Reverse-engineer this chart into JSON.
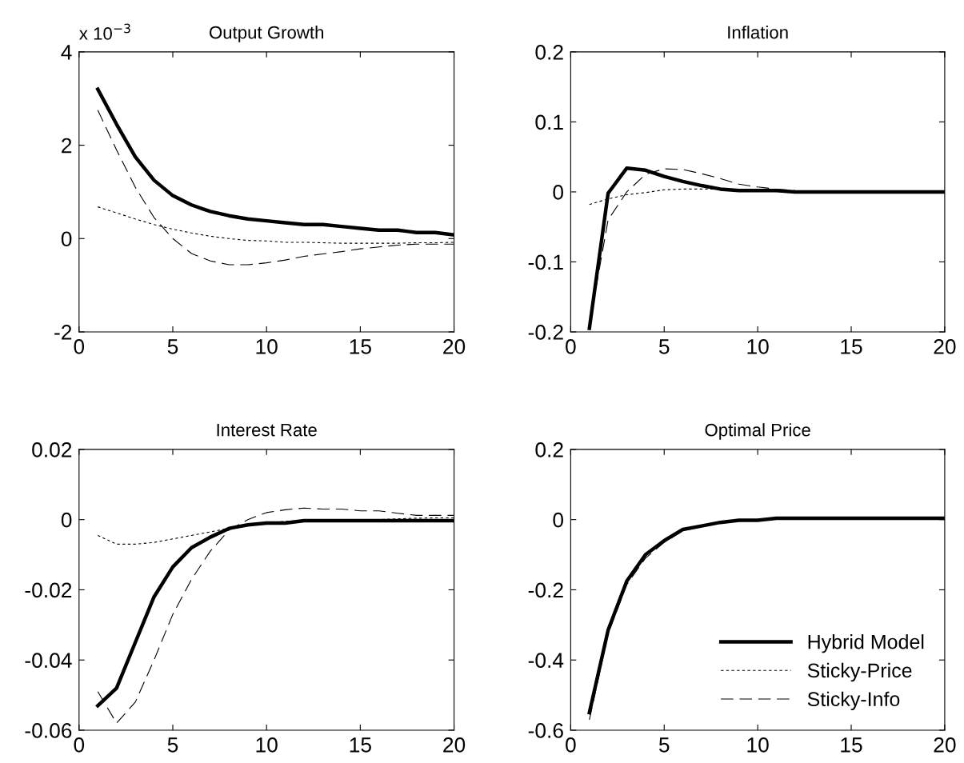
{
  "chart_data": [
    {
      "type": "line",
      "title": "Output Growth",
      "annotations": [
        "x 10$^{−3}$"
      ],
      "x": [
        1,
        2,
        3,
        4,
        5,
        6,
        7,
        8,
        9,
        10,
        11,
        12,
        13,
        14,
        15,
        16,
        17,
        18,
        19,
        20
      ],
      "xlim": [
        0,
        20
      ],
      "xticks": [
        0,
        5,
        10,
        15,
        20
      ],
      "ylim": [
        -2,
        4
      ],
      "yticks": [
        -2,
        0,
        2,
        4
      ],
      "grid": false,
      "legend": false,
      "series": [
        {
          "color": "#000000",
          "line_style": "solid",
          "values": [
            3.2,
            2.45,
            1.75,
            1.25,
            0.92,
            0.72,
            0.58,
            0.49,
            0.42,
            0.38,
            0.34,
            0.3,
            0.3,
            0.26,
            0.22,
            0.18,
            0.18,
            0.13,
            0.13,
            0.08
          ]
        },
        {
          "color": "#000000",
          "line_style": "dotted",
          "values": [
            0.68,
            0.55,
            0.42,
            0.3,
            0.2,
            0.12,
            0.05,
            0.0,
            -0.04,
            -0.05,
            -0.08,
            -0.08,
            -0.09,
            -0.1,
            -0.1,
            -0.1,
            -0.1,
            -0.09,
            -0.09,
            -0.08
          ]
        },
        {
          "color": "#000000",
          "line_style": "dashed",
          "values": [
            2.75,
            1.9,
            1.1,
            0.45,
            0.0,
            -0.32,
            -0.48,
            -0.56,
            -0.56,
            -0.52,
            -0.46,
            -0.38,
            -0.33,
            -0.28,
            -0.22,
            -0.18,
            -0.14,
            -0.12,
            -0.12,
            -0.12
          ]
        }
      ]
    },
    {
      "type": "line",
      "title": "Inflation",
      "x": [
        1,
        2,
        3,
        4,
        5,
        6,
        7,
        8,
        9,
        10,
        11,
        12,
        13,
        14,
        15,
        16,
        17,
        18,
        19,
        20
      ],
      "xlim": [
        0,
        20
      ],
      "xticks": [
        0,
        5,
        10,
        15,
        20
      ],
      "ylim": [
        -0.2,
        0.2
      ],
      "yticks": [
        -0.2,
        -0.1,
        0,
        0.1,
        0.2
      ],
      "grid": false,
      "legend": false,
      "series": [
        {
          "color": "#000000",
          "line_style": "solid",
          "values": [
            -0.195,
            -0.002,
            0.034,
            0.031,
            0.022,
            0.015,
            0.009,
            0.004,
            0.002,
            0.002,
            0.002,
            0,
            0,
            0,
            0,
            0,
            0,
            0,
            0,
            0
          ]
        },
        {
          "color": "#000000",
          "line_style": "dotted",
          "values": [
            -0.018,
            -0.01,
            -0.004,
            -0.001,
            0.003,
            0.004,
            0.004,
            0.004,
            0.003,
            0.003,
            0.002,
            0.001,
            0.001,
            0.001,
            0.001,
            0.001,
            0.001,
            0.001,
            0.001,
            0.001
          ]
        },
        {
          "color": "#000000",
          "line_style": "dashed",
          "values": [
            -0.19,
            -0.04,
            0.0,
            0.025,
            0.033,
            0.032,
            0.026,
            0.019,
            0.011,
            0.007,
            0.004,
            0.002,
            0.001,
            0.001,
            0,
            0,
            0,
            0,
            0,
            0
          ]
        }
      ]
    },
    {
      "type": "line",
      "title": "Interest Rate",
      "x": [
        1,
        2,
        3,
        4,
        5,
        6,
        7,
        8,
        9,
        10,
        11,
        12,
        13,
        14,
        15,
        16,
        17,
        18,
        19,
        20
      ],
      "xlim": [
        0,
        20
      ],
      "xticks": [
        0,
        5,
        10,
        15,
        20
      ],
      "ylim": [
        -0.06,
        0.02
      ],
      "yticks": [
        -0.06,
        -0.04,
        -0.02,
        0,
        0.02
      ],
      "grid": false,
      "legend": false,
      "series": [
        {
          "color": "#000000",
          "line_style": "solid",
          "values": [
            -0.053,
            -0.048,
            -0.035,
            -0.022,
            -0.0135,
            -0.008,
            -0.005,
            -0.0025,
            -0.0015,
            -0.001,
            -0.001,
            -0.0003,
            -0.0003,
            -0.0003,
            -0.0003,
            -0.0003,
            -0.0003,
            -0.0003,
            -0.0003,
            -0.0003
          ]
        },
        {
          "color": "#000000",
          "line_style": "dotted",
          "values": [
            -0.0045,
            -0.007,
            -0.007,
            -0.0065,
            -0.0055,
            -0.0045,
            -0.0035,
            -0.0025,
            -0.0015,
            -0.001,
            -0.0005,
            -0.0002,
            0,
            0,
            0,
            0,
            0.0002,
            0.0004,
            0.0005,
            0.0005
          ]
        },
        {
          "color": "#000000",
          "line_style": "dashed",
          "values": [
            -0.049,
            -0.058,
            -0.052,
            -0.04,
            -0.027,
            -0.017,
            -0.009,
            -0.003,
            0.0,
            0.002,
            0.0028,
            0.0033,
            0.003,
            0.003,
            0.0025,
            0.0025,
            0.0018,
            0.0012,
            0.0012,
            0.0012
          ]
        }
      ]
    },
    {
      "type": "line",
      "title": "Optimal Price",
      "x": [
        1,
        2,
        3,
        4,
        5,
        6,
        7,
        8,
        9,
        10,
        11,
        12,
        13,
        14,
        15,
        16,
        17,
        18,
        19,
        20
      ],
      "xlim": [
        0,
        20
      ],
      "xticks": [
        0,
        5,
        10,
        15,
        20
      ],
      "ylim": [
        -0.6,
        0.2
      ],
      "yticks": [
        -0.6,
        -0.4,
        -0.2,
        0,
        0.2
      ],
      "grid": false,
      "legend": "bottom right",
      "series": [
        {
          "name": "Hybrid Model",
          "color": "#000000",
          "line_style": "solid",
          "values": [
            -0.55,
            -0.315,
            -0.175,
            -0.1,
            -0.06,
            -0.028,
            -0.018,
            -0.008,
            -0.002,
            -0.002,
            0.004,
            0.004,
            0.004,
            0.004,
            0.004,
            0.004,
            0.004,
            0.004,
            0.004,
            0.004
          ]
        },
        {
          "name": "Sticky-Price",
          "color": "#000000",
          "line_style": "dotted",
          "values": [
            null,
            null,
            null,
            null,
            null,
            null,
            null,
            null,
            null,
            null,
            null,
            null,
            null,
            null,
            null,
            null,
            null,
            null,
            null,
            null
          ]
        },
        {
          "name": "Sticky-Info",
          "color": "#000000",
          "line_style": "dashed",
          "values": [
            -0.57,
            -0.325,
            -0.185,
            -0.11,
            -0.065,
            -0.032,
            -0.02,
            -0.01,
            -0.003,
            -0.002,
            0.003,
            0.003,
            0.003,
            0.003,
            0.003,
            0.003,
            0.003,
            0.003,
            0.003,
            0.003
          ]
        }
      ]
    }
  ]
}
